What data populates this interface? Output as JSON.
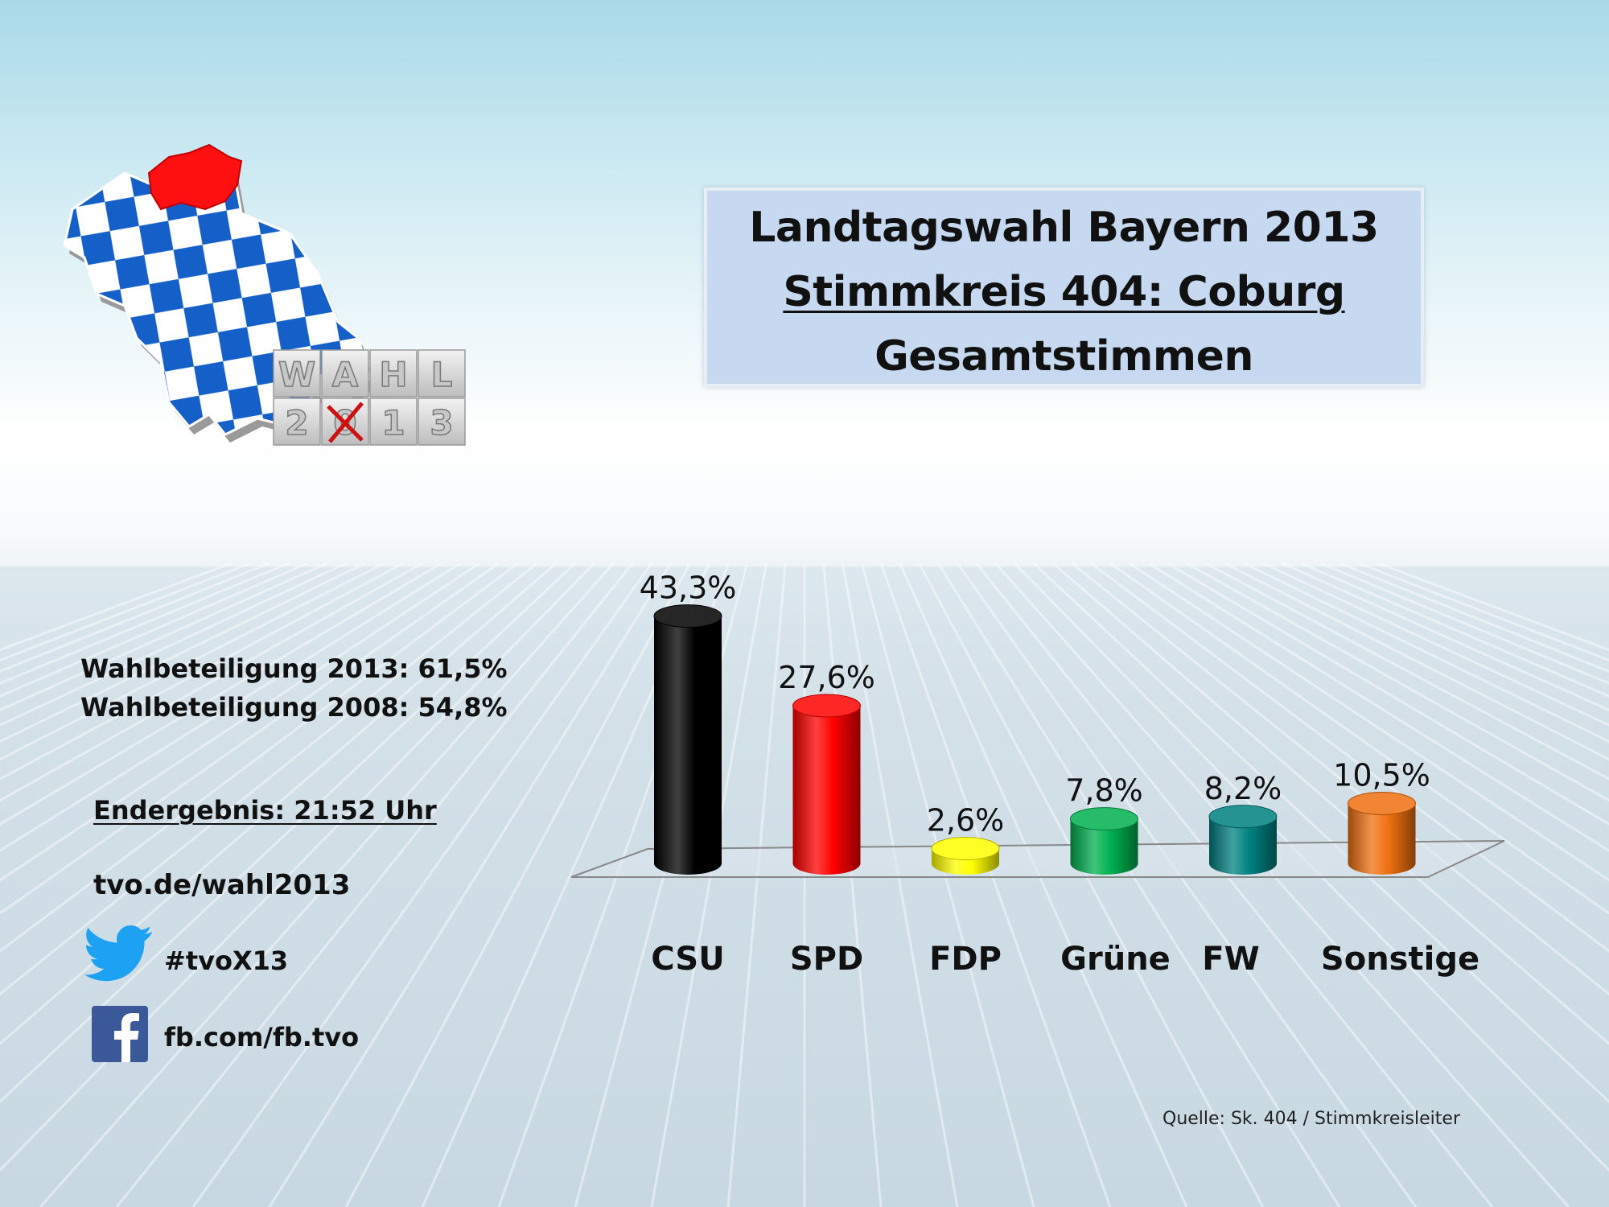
{
  "title": {
    "line1": "Landtagswahl Bayern 2013",
    "line2": "Stimmkreis 404: Coburg",
    "line3": "Gesamtstimmen"
  },
  "logo": {
    "letters_top": [
      "W",
      "A",
      "H",
      "L"
    ],
    "letters_bottom": [
      "2",
      "0",
      "1",
      "3"
    ]
  },
  "sidebar": {
    "turnout_2013": "Wahlbeteiligung 2013: 61,5%",
    "turnout_2008": "Wahlbeteiligung 2008: 54,8%",
    "final_result": "Endergebnis: 21:52 Uhr",
    "website": "tvo.de/wahl2013",
    "hashtag": "#tvoX13",
    "facebook": "fb.com/fb.tvo",
    "twitter_icon": "twitter-bird-icon",
    "facebook_icon": "facebook-f-icon"
  },
  "source": "Quelle: Sk. 404 / Stimmkreisleiter",
  "colors": {
    "title_box": "#c6d9f1",
    "CSU": "#000000",
    "SPD": "#ff0000",
    "FDP": "#ffff00",
    "Grüne": "#00b050",
    "FW": "#008080",
    "Sonstige": "#f07010",
    "twitter": "#1da1f2",
    "facebook": "#3b5998"
  },
  "chart_data": {
    "type": "bar",
    "categories": [
      "CSU",
      "SPD",
      "FDP",
      "Grüne",
      "FW",
      "Sonstige"
    ],
    "values": [
      43.3,
      27.6,
      2.6,
      7.8,
      8.2,
      10.5
    ],
    "value_labels": [
      "43,3%",
      "27,6%",
      "2,6%",
      "7,8%",
      "8,2%",
      "10,5%"
    ],
    "colors": [
      "#000000",
      "#ff0000",
      "#ffff00",
      "#00b050",
      "#008080",
      "#f07010"
    ],
    "unit": "%",
    "style": "3d-cylinder",
    "grid": false,
    "legend": "none"
  }
}
